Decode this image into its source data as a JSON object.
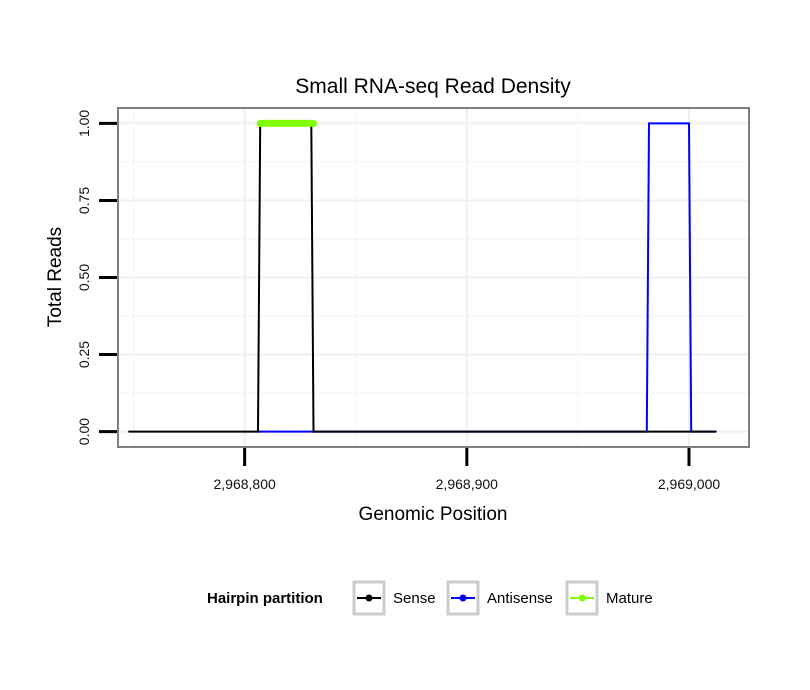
{
  "chart_data": {
    "type": "line",
    "title": "Small RNA-seq Read Density",
    "xlabel": "Genomic Position",
    "ylabel": "Total Reads",
    "xlim": [
      2968743,
      2969027
    ],
    "ylim": [
      -0.05,
      1.05
    ],
    "x_ticks": [
      2968800,
      2968900,
      2969000
    ],
    "x_tick_labels": [
      "2,968,800",
      "2,968,900",
      "2,969,000"
    ],
    "y_ticks": [
      0,
      0.25,
      0.5,
      0.75,
      1
    ],
    "y_tick_labels": [
      "0.00",
      "0.25",
      "0.50",
      "0.75",
      "1.00"
    ],
    "grid": true,
    "legend": {
      "title": "Hairpin partition",
      "position": "bottom",
      "entries": [
        "Sense",
        "Antisense",
        "Mature"
      ]
    },
    "series": [
      {
        "name": "Sense",
        "color": "#000000",
        "points": [
          [
            2968748,
            0
          ],
          [
            2968806,
            0
          ],
          [
            2968807,
            1
          ],
          [
            2968830,
            1
          ],
          [
            2968831,
            0
          ],
          [
            2969012,
            0
          ]
        ]
      },
      {
        "name": "Antisense",
        "color": "#0000ff",
        "points": [
          [
            2968806,
            0
          ],
          [
            2968830,
            0
          ],
          [
            2968831,
            0
          ],
          [
            2968981,
            0
          ],
          [
            2968982,
            1
          ],
          [
            2969000,
            1
          ],
          [
            2969001,
            0
          ],
          [
            2969012,
            0
          ]
        ]
      },
      {
        "name": "Mature",
        "color": "#7fff00",
        "points": [
          [
            2968807,
            1
          ],
          [
            2968831,
            1
          ]
        ]
      }
    ]
  }
}
